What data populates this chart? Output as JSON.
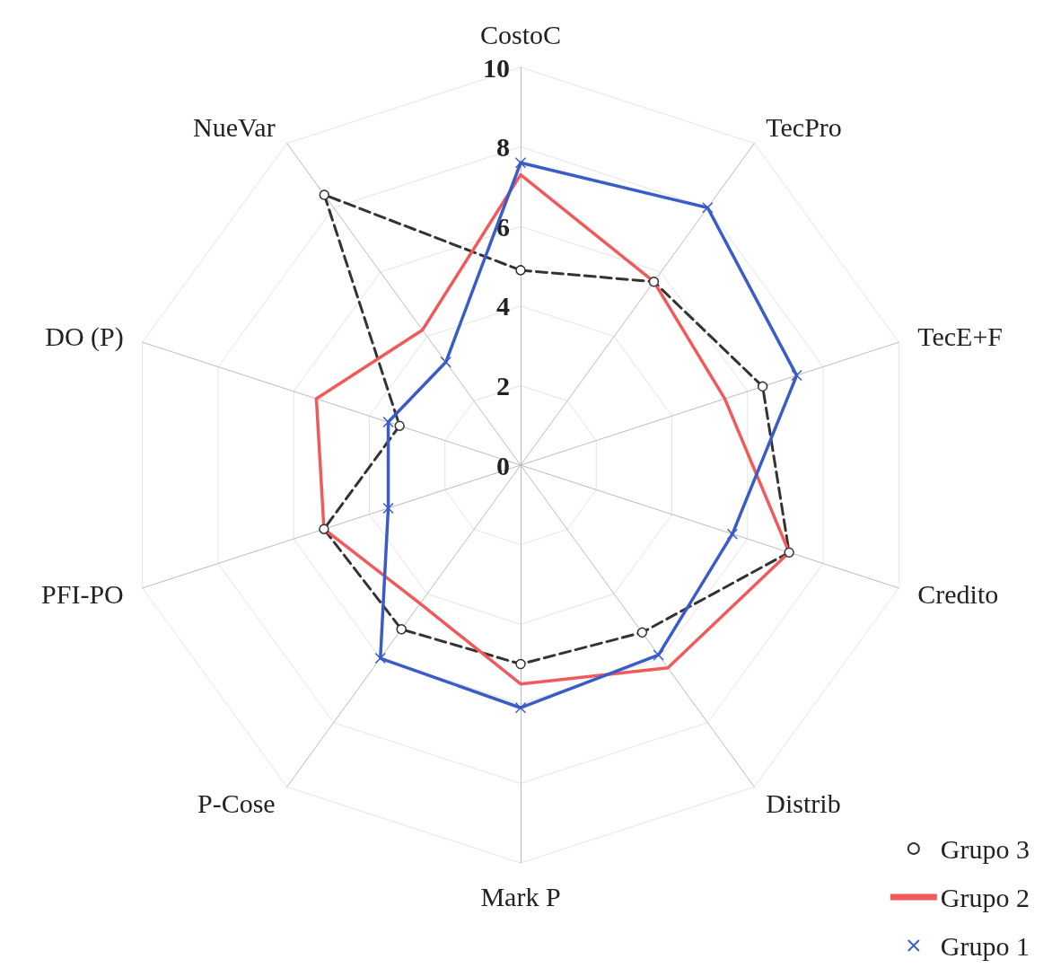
{
  "chart_data": {
    "type": "radar",
    "categories": [
      "CostoC",
      "TecPro",
      "TecE+F",
      "Credito",
      "Distrib",
      "Mark P",
      "P-Cose",
      "PFI-PO",
      "DO (P)",
      "NueVar"
    ],
    "series": [
      {
        "name": "Grupo 3",
        "color": "#333333",
        "marker": "circle",
        "line_style": "dashed",
        "values": [
          4.9,
          5.7,
          6.4,
          7.1,
          5.2,
          5.0,
          5.1,
          5.2,
          3.2,
          8.4
        ]
      },
      {
        "name": "Grupo 2",
        "color": "#f05a5a",
        "marker": "none",
        "line_style": "solid",
        "values": [
          7.3,
          5.7,
          5.4,
          7.1,
          6.3,
          5.5,
          4.3,
          5.2,
          5.4,
          4.2
        ]
      },
      {
        "name": "Grupo 1",
        "color": "#3a5cc8",
        "marker": "cross",
        "line_style": "solid",
        "values": [
          7.6,
          8.0,
          7.3,
          5.6,
          5.9,
          6.1,
          6.0,
          3.5,
          3.5,
          3.2
        ]
      }
    ],
    "ylim": [
      0,
      10
    ],
    "yticks": [
      0,
      2,
      4,
      6,
      8,
      10
    ],
    "grid": true,
    "legend": "bottom right"
  }
}
